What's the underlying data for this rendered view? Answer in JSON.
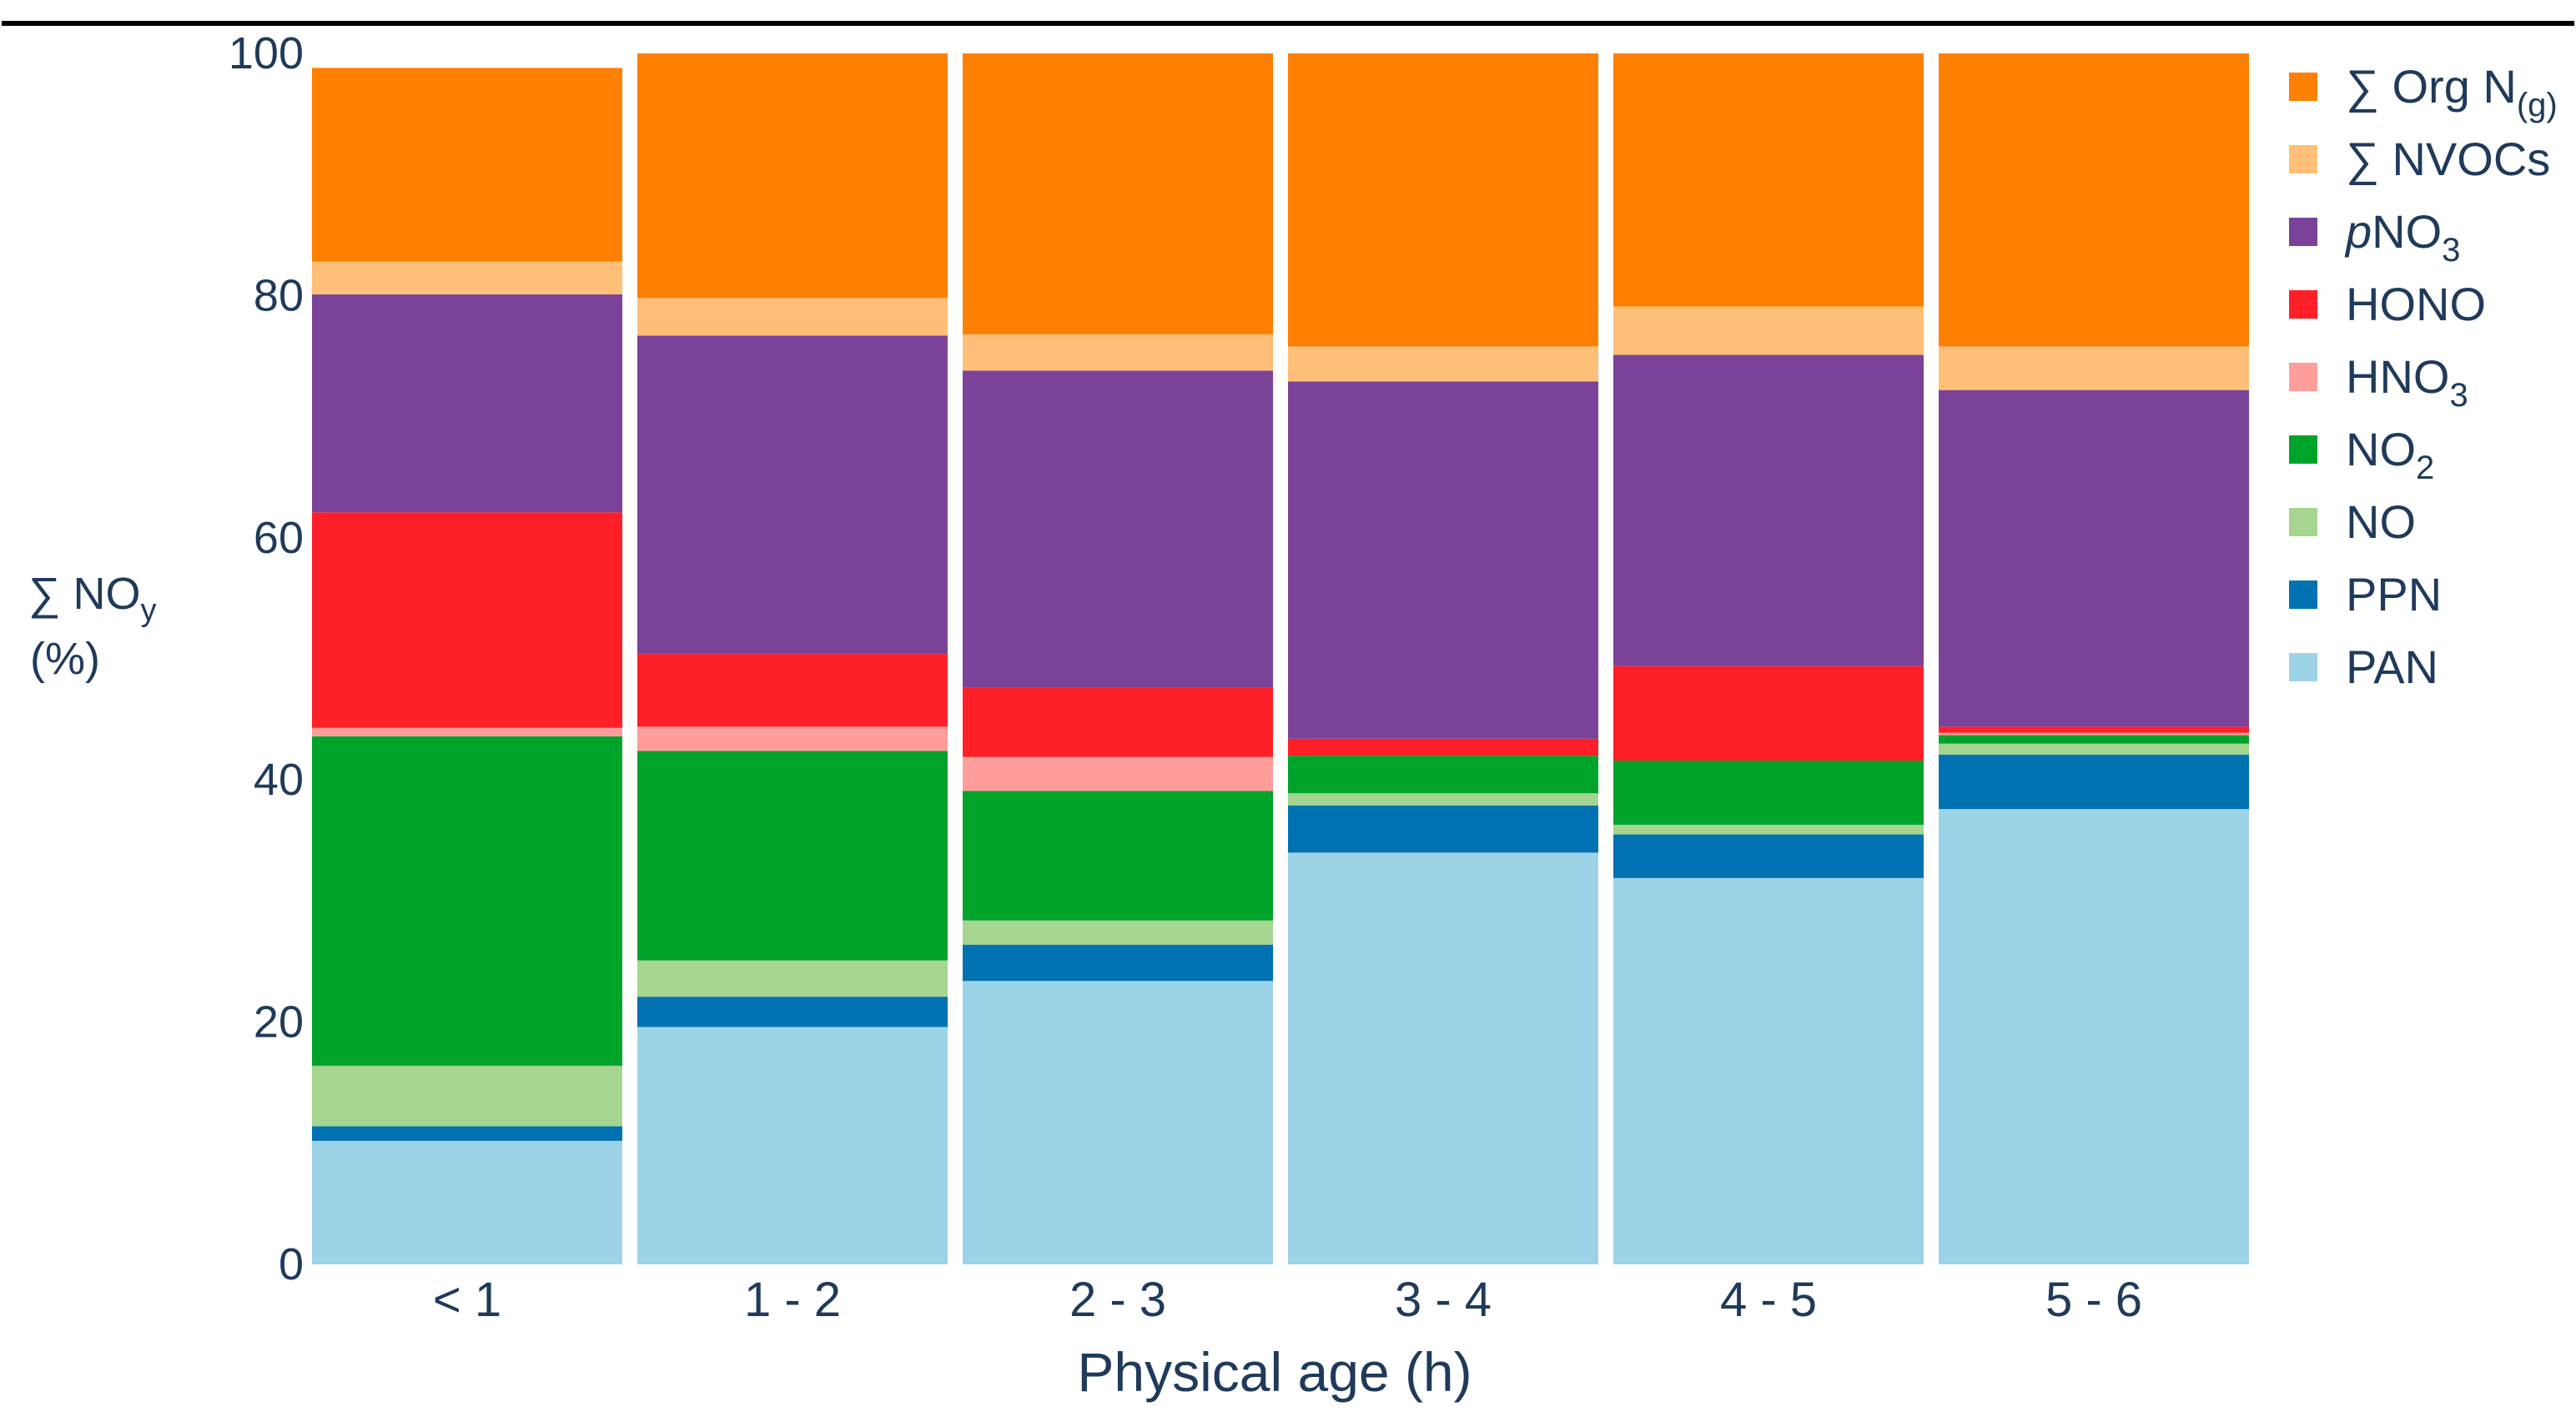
{
  "chart_data": {
    "type": "bar",
    "stacked": true,
    "title": "",
    "xlabel": "Physical age (h)",
    "ylabel": "∑ NO",
    "ylabel_sub": "y",
    "ylabel_unit": "(%)",
    "ylim": [
      0,
      100
    ],
    "yticks": [
      "0",
      "20",
      "40",
      "60",
      "80",
      "100"
    ],
    "categories": [
      "< 1",
      "1 - 2",
      "2 - 3",
      "3 - 4",
      "4 - 5",
      "5 - 6"
    ],
    "legend_position": "right",
    "series": [
      {
        "name": "PAN",
        "color": "#9dd3e6",
        "values": [
          10.2,
          19.6,
          23.4,
          34.0,
          31.9,
          37.6
        ]
      },
      {
        "name": "PPN",
        "color": "#0072b2",
        "values": [
          1.2,
          2.5,
          3.0,
          3.9,
          3.6,
          4.5
        ]
      },
      {
        "name": "NO",
        "color": "#a5d58f",
        "values": [
          5.0,
          3.0,
          2.0,
          1.0,
          0.8,
          0.9
        ]
      },
      {
        "name": "NO2",
        "color": "#00a32a",
        "values": [
          27.2,
          17.3,
          10.7,
          3.1,
          5.3,
          0.7
        ]
      },
      {
        "name": "HNO3",
        "color": "#ff9d9b",
        "values": [
          0.7,
          2.0,
          2.8,
          0.0,
          0.0,
          0.2
        ]
      },
      {
        "name": "HONO",
        "color": "#ff1f26",
        "values": [
          17.8,
          6.0,
          5.7,
          1.4,
          7.8,
          0.5
        ]
      },
      {
        "name": "pNO3",
        "color": "#7a4399",
        "values": [
          18.0,
          26.3,
          26.2,
          29.5,
          25.7,
          27.8
        ]
      },
      {
        "name": "∑ NVOCs",
        "color": "#ffbf78",
        "values": [
          2.7,
          3.1,
          3.0,
          2.9,
          4.0,
          3.6
        ]
      },
      {
        "name": "∑ Org N(g)",
        "color": "#ff8000",
        "values": [
          16.0,
          20.2,
          23.2,
          24.2,
          20.9,
          24.2
        ]
      }
    ],
    "legend": [
      {
        "pre": "∑ Org N",
        "sub": "(g)",
        "color": "#ff8000"
      },
      {
        "pre": "∑ NVOCs",
        "color": "#ffbf78"
      },
      {
        "italic": "p",
        "pre": "NO",
        "sub": "3",
        "color": "#7a4399"
      },
      {
        "pre": "HONO",
        "color": "#ff1f26"
      },
      {
        "pre": "HNO",
        "sub": "3",
        "color": "#ff9d9b"
      },
      {
        "pre": "NO",
        "sub": "2",
        "color": "#00a32a"
      },
      {
        "pre": "NO",
        "color": "#a5d58f"
      },
      {
        "pre": "PPN",
        "color": "#0072b2"
      },
      {
        "pre": "PAN",
        "color": "#9dd3e6"
      }
    ]
  }
}
